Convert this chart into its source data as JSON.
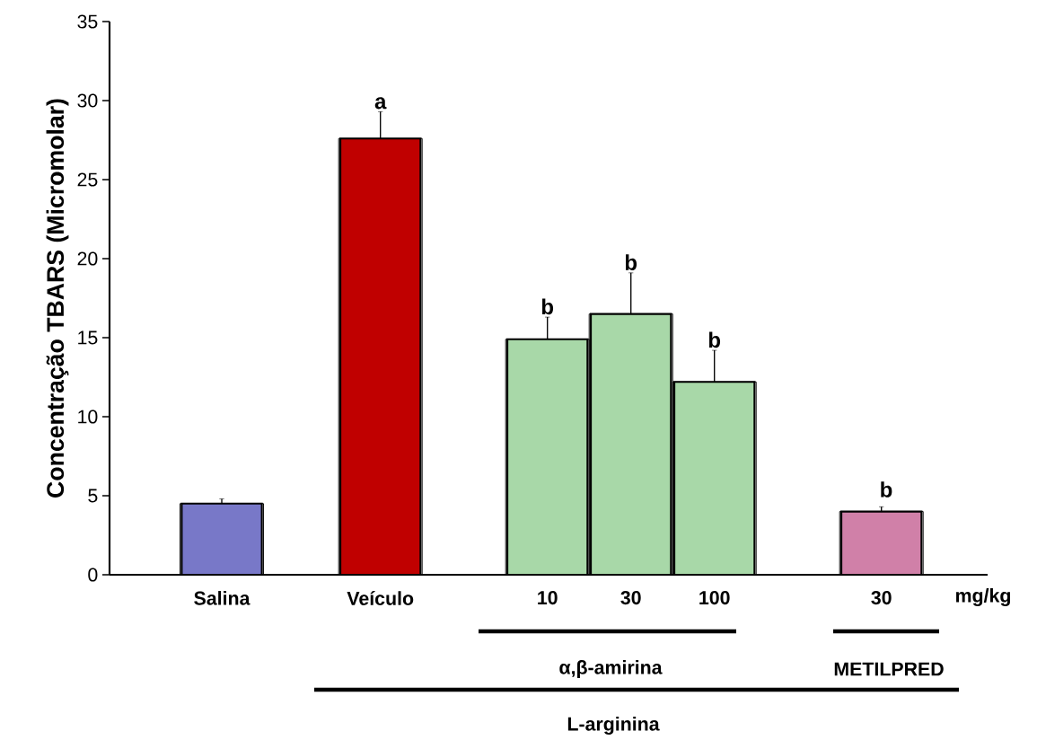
{
  "chart_data": {
    "type": "bar",
    "ylabel": "Concentração TBARS (Micromolar)",
    "categories": [
      "Salina",
      "Veículo",
      "10",
      "30",
      "100",
      "30"
    ],
    "values": [
      4.5,
      27.6,
      14.9,
      16.5,
      12.2,
      4.0
    ],
    "errors": [
      0.3,
      1.7,
      1.4,
      2.6,
      2.0,
      0.3
    ],
    "colors": [
      "#7878c8",
      "#c00000",
      "#a8d8a8",
      "#a8d8a8",
      "#a8d8a8",
      "#d080a8"
    ],
    "ylim": [
      0,
      35
    ],
    "yticks": [
      0,
      5,
      10,
      15,
      20,
      25,
      30,
      35
    ],
    "annotations": [
      {
        "text": "a",
        "x": "Veículo",
        "y": 29.3
      },
      {
        "text": "b",
        "x": "10",
        "y": 16.3
      },
      {
        "text": "b",
        "x": "30",
        "y": 19.1
      },
      {
        "text": "b",
        "x": "100",
        "y": 14.2
      },
      "b",
      "mg/kg",
      "α,β-amirina",
      "METILPRED",
      "L-arginina"
    ]
  }
}
